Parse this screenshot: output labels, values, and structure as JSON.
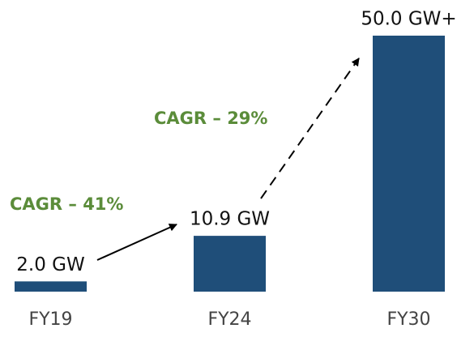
{
  "chart_data": {
    "type": "bar",
    "categories": [
      "FY19",
      "FY24",
      "FY30"
    ],
    "values": [
      2.0,
      10.9,
      50.0
    ],
    "value_labels": [
      "2.0 GW",
      "10.9 GW",
      "50.0 GW+"
    ],
    "color": "#1f4e79",
    "ylim": [
      0,
      50
    ],
    "annotations": [
      "CAGR – 41%",
      "CAGR – 29%"
    ]
  }
}
